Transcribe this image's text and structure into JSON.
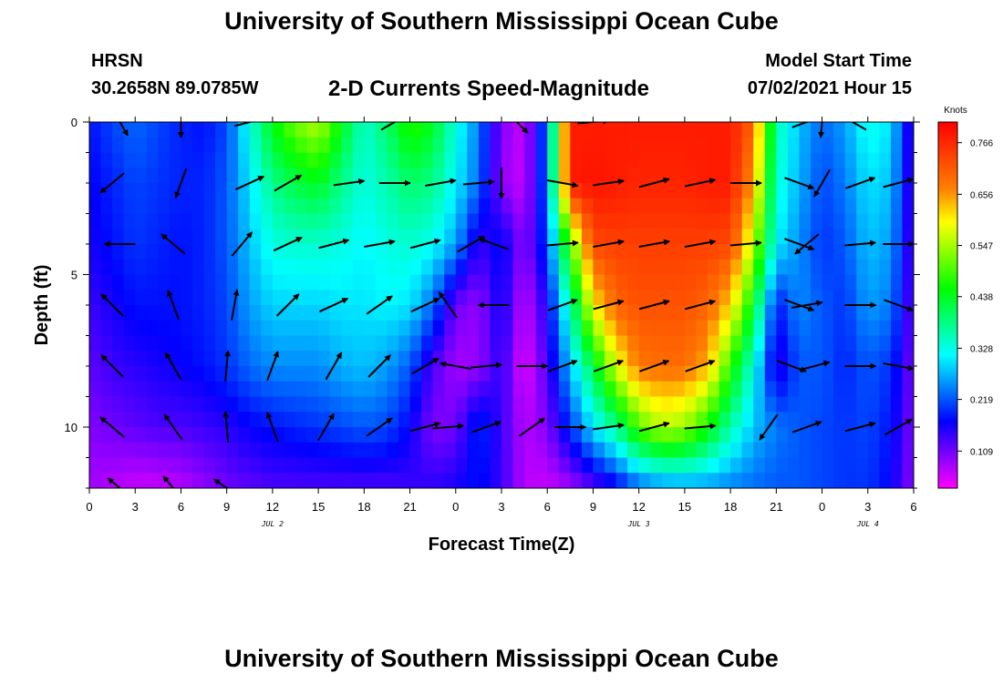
{
  "header": {
    "title": "University of Southern Mississippi Ocean Cube",
    "station": "HRSN",
    "coordinates": "30.2658N  89.0785W",
    "subtitle": "2-D Currents Speed-Magnitude",
    "model_start_label": "Model Start Time",
    "model_start_value": "07/02/2021 Hour 15"
  },
  "footer": {
    "title": "University of Southern Mississippi Ocean Cube"
  },
  "chart_data": {
    "type": "heatmap",
    "xlabel": "Forecast Time(Z)",
    "ylabel": "Depth (ft)",
    "x_hours_range": [
      0,
      54
    ],
    "y_range": [
      0,
      12
    ],
    "y_inverted": true,
    "x_ticks": [
      "0",
      "3",
      "6",
      "9",
      "12",
      "15",
      "18",
      "21",
      "0",
      "3",
      "6",
      "9",
      "12",
      "15",
      "18",
      "21",
      "0",
      "3",
      "6"
    ],
    "y_ticks": [
      "0",
      "5",
      "10"
    ],
    "date_labels": [
      {
        "text": "JUL 2",
        "hour": 12
      },
      {
        "text": "JUL 3",
        "hour": 36
      },
      {
        "text": "JUL 4",
        "hour": 51
      }
    ],
    "colorbar": {
      "unit": "Knots",
      "ticks": [
        0.766,
        0.656,
        0.547,
        0.438,
        0.328,
        0.219,
        0.109
      ],
      "range": [
        0.03,
        0.81
      ],
      "colors": [
        "#ff00ff",
        "#8000ff",
        "#0000ff",
        "#0080ff",
        "#00ffff",
        "#00ff80",
        "#00ff00",
        "#80ff00",
        "#ffff00",
        "#ff8000",
        "#ff4000",
        "#ff0000"
      ]
    },
    "depths_ft": [
      0,
      2,
      4,
      6,
      8,
      10,
      12
    ],
    "hours": [
      0,
      1.5,
      3,
      4.5,
      6,
      7.5,
      9,
      10.5,
      12,
      13.5,
      15,
      16.5,
      18,
      19.5,
      21,
      22.5,
      24,
      25.5,
      27,
      28.5,
      30,
      31.5,
      33,
      34.5,
      36,
      37.5,
      39,
      40.5,
      42,
      43.5,
      45,
      46.5,
      48,
      49.5,
      51,
      52.5,
      54
    ],
    "speed_knots": [
      [
        0.18,
        0.21,
        0.23,
        0.21,
        0.19,
        0.18,
        0.21,
        0.33,
        0.45,
        0.52,
        0.56,
        0.45,
        0.34,
        0.4,
        0.48,
        0.44,
        0.33,
        0.24,
        0.1,
        0.06,
        0.24,
        0.78,
        0.78,
        0.78,
        0.78,
        0.78,
        0.78,
        0.78,
        0.78,
        0.7,
        0.36,
        0.28,
        0.23,
        0.26,
        0.33,
        0.3,
        0.12
      ],
      [
        0.17,
        0.19,
        0.21,
        0.2,
        0.19,
        0.19,
        0.22,
        0.3,
        0.38,
        0.42,
        0.44,
        0.38,
        0.33,
        0.36,
        0.4,
        0.38,
        0.31,
        0.23,
        0.09,
        0.06,
        0.24,
        0.78,
        0.79,
        0.78,
        0.77,
        0.77,
        0.77,
        0.78,
        0.78,
        0.65,
        0.34,
        0.27,
        0.21,
        0.24,
        0.3,
        0.28,
        0.12
      ],
      [
        0.16,
        0.18,
        0.2,
        0.19,
        0.18,
        0.19,
        0.22,
        0.28,
        0.33,
        0.34,
        0.34,
        0.33,
        0.31,
        0.33,
        0.34,
        0.32,
        0.26,
        0.14,
        0.18,
        0.09,
        0.21,
        0.5,
        0.73,
        0.74,
        0.74,
        0.74,
        0.74,
        0.74,
        0.73,
        0.56,
        0.31,
        0.25,
        0.2,
        0.22,
        0.28,
        0.26,
        0.12
      ],
      [
        0.14,
        0.16,
        0.18,
        0.18,
        0.18,
        0.19,
        0.21,
        0.26,
        0.29,
        0.29,
        0.29,
        0.3,
        0.3,
        0.31,
        0.3,
        0.23,
        0.11,
        0.09,
        0.17,
        0.06,
        0.16,
        0.36,
        0.6,
        0.7,
        0.72,
        0.72,
        0.72,
        0.7,
        0.62,
        0.44,
        0.18,
        0.25,
        0.22,
        0.2,
        0.26,
        0.24,
        0.11
      ],
      [
        0.12,
        0.14,
        0.15,
        0.16,
        0.17,
        0.18,
        0.2,
        0.23,
        0.25,
        0.25,
        0.25,
        0.27,
        0.28,
        0.26,
        0.22,
        0.13,
        0.08,
        0.09,
        0.15,
        0.04,
        0.13,
        0.28,
        0.42,
        0.58,
        0.68,
        0.69,
        0.69,
        0.64,
        0.48,
        0.33,
        0.14,
        0.22,
        0.22,
        0.19,
        0.22,
        0.2,
        0.1
      ],
      [
        0.1,
        0.11,
        0.12,
        0.13,
        0.13,
        0.14,
        0.15,
        0.17,
        0.18,
        0.19,
        0.2,
        0.21,
        0.22,
        0.21,
        0.17,
        0.1,
        0.11,
        0.2,
        0.14,
        0.07,
        0.1,
        0.2,
        0.3,
        0.38,
        0.5,
        0.56,
        0.54,
        0.46,
        0.36,
        0.28,
        0.24,
        0.22,
        0.21,
        0.2,
        0.21,
        0.18,
        0.1
      ],
      [
        0.08,
        0.07,
        0.06,
        0.06,
        0.07,
        0.09,
        0.11,
        0.12,
        0.13,
        0.13,
        0.13,
        0.13,
        0.13,
        0.13,
        0.14,
        0.15,
        0.16,
        0.18,
        0.14,
        0.07,
        0.06,
        0.08,
        0.12,
        0.16,
        0.22,
        0.24,
        0.25,
        0.25,
        0.24,
        0.23,
        0.22,
        0.22,
        0.21,
        0.2,
        0.2,
        0.17,
        0.09
      ]
    ],
    "vectors": [
      {
        "h": 2,
        "d": 0,
        "a": 60
      },
      {
        "h": 6,
        "d": 0,
        "a": 90
      },
      {
        "h": 10.5,
        "d": 0,
        "a": 345
      },
      {
        "h": 20,
        "d": 0,
        "a": 330
      },
      {
        "h": 28,
        "d": 0,
        "a": 45
      },
      {
        "h": 33,
        "d": 0,
        "a": 355
      },
      {
        "h": 47,
        "d": 0,
        "a": 340
      },
      {
        "h": 48,
        "d": 0,
        "a": 95
      },
      {
        "h": 50,
        "d": 0,
        "a": 210
      },
      {
        "h": 54,
        "d": 0,
        "a": 200
      },
      {
        "h": 1.5,
        "d": 2,
        "a": 140
      },
      {
        "h": 6,
        "d": 2,
        "a": 110
      },
      {
        "h": 10.5,
        "d": 2,
        "a": -25
      },
      {
        "h": 13,
        "d": 2,
        "a": -30
      },
      {
        "h": 17,
        "d": 2,
        "a": -8
      },
      {
        "h": 20,
        "d": 2,
        "a": 0
      },
      {
        "h": 23,
        "d": 2,
        "a": -10
      },
      {
        "h": 25.5,
        "d": 2,
        "a": -5
      },
      {
        "h": 27,
        "d": 2,
        "a": 90
      },
      {
        "h": 31,
        "d": 2,
        "a": 10
      },
      {
        "h": 34,
        "d": 2,
        "a": -8
      },
      {
        "h": 37,
        "d": 2,
        "a": -15
      },
      {
        "h": 40,
        "d": 2,
        "a": -12
      },
      {
        "h": 43,
        "d": 2,
        "a": 0
      },
      {
        "h": 46.5,
        "d": 2,
        "a": 20
      },
      {
        "h": 48,
        "d": 2,
        "a": 120
      },
      {
        "h": 50.5,
        "d": 2,
        "a": -20
      },
      {
        "h": 53,
        "d": 2,
        "a": -15
      },
      {
        "h": 2,
        "d": 4,
        "a": 180
      },
      {
        "h": 5.5,
        "d": 4,
        "a": 220
      },
      {
        "h": 10,
        "d": 4,
        "a": -50
      },
      {
        "h": 13,
        "d": 4,
        "a": -25
      },
      {
        "h": 16,
        "d": 4,
        "a": -15
      },
      {
        "h": 19,
        "d": 4,
        "a": -10
      },
      {
        "h": 22,
        "d": 4,
        "a": -15
      },
      {
        "h": 25,
        "d": 4,
        "a": -30
      },
      {
        "h": 26.5,
        "d": 4,
        "a": 200
      },
      {
        "h": 31,
        "d": 4,
        "a": -5
      },
      {
        "h": 34,
        "d": 4,
        "a": -10
      },
      {
        "h": 37,
        "d": 4,
        "a": -10
      },
      {
        "h": 40,
        "d": 4,
        "a": -10
      },
      {
        "h": 43,
        "d": 4,
        "a": -5
      },
      {
        "h": 46.5,
        "d": 4,
        "a": 20
      },
      {
        "h": 47,
        "d": 4,
        "a": 140
      },
      {
        "h": 50.5,
        "d": 4,
        "a": -5
      },
      {
        "h": 53,
        "d": 4,
        "a": 0
      },
      {
        "h": 1.5,
        "d": 6,
        "a": 225
      },
      {
        "h": 5.5,
        "d": 6,
        "a": 250
      },
      {
        "h": 9.5,
        "d": 6,
        "a": -80
      },
      {
        "h": 13,
        "d": 6,
        "a": -45
      },
      {
        "h": 16,
        "d": 6,
        "a": -25
      },
      {
        "h": 19,
        "d": 6,
        "a": -35
      },
      {
        "h": 22,
        "d": 6,
        "a": -25
      },
      {
        "h": 23.5,
        "d": 6,
        "a": 235
      },
      {
        "h": 26.5,
        "d": 6,
        "a": 180
      },
      {
        "h": 31,
        "d": 6,
        "a": -20
      },
      {
        "h": 34,
        "d": 6,
        "a": -15
      },
      {
        "h": 37,
        "d": 6,
        "a": -15
      },
      {
        "h": 40,
        "d": 6,
        "a": -15
      },
      {
        "h": 46.5,
        "d": 6,
        "a": 20
      },
      {
        "h": 47,
        "d": 6,
        "a": -10
      },
      {
        "h": 50.5,
        "d": 6,
        "a": 0
      },
      {
        "h": 53,
        "d": 6,
        "a": 20
      },
      {
        "h": 1.5,
        "d": 8,
        "a": 225
      },
      {
        "h": 5.5,
        "d": 8,
        "a": 240
      },
      {
        "h": 9,
        "d": 8,
        "a": -85
      },
      {
        "h": 12,
        "d": 8,
        "a": -70
      },
      {
        "h": 16,
        "d": 8,
        "a": -60
      },
      {
        "h": 19,
        "d": 8,
        "a": -45
      },
      {
        "h": 22,
        "d": 8,
        "a": -30
      },
      {
        "h": 24,
        "d": 8,
        "a": 190
      },
      {
        "h": 26,
        "d": 8,
        "a": -5
      },
      {
        "h": 29,
        "d": 8,
        "a": 0
      },
      {
        "h": 31,
        "d": 8,
        "a": -20
      },
      {
        "h": 34,
        "d": 8,
        "a": -20
      },
      {
        "h": 37,
        "d": 8,
        "a": -20
      },
      {
        "h": 40,
        "d": 8,
        "a": -20
      },
      {
        "h": 46,
        "d": 8,
        "a": 20
      },
      {
        "h": 47.5,
        "d": 8,
        "a": -15
      },
      {
        "h": 50.5,
        "d": 8,
        "a": 0
      },
      {
        "h": 53,
        "d": 8,
        "a": 10
      },
      {
        "h": 1.5,
        "d": 10,
        "a": 220
      },
      {
        "h": 5.5,
        "d": 10,
        "a": 235
      },
      {
        "h": 9,
        "d": 10,
        "a": 265
      },
      {
        "h": 12,
        "d": 10,
        "a": 250
      },
      {
        "h": 15.5,
        "d": 10,
        "a": -60
      },
      {
        "h": 19,
        "d": 10,
        "a": -35
      },
      {
        "h": 22,
        "d": 10,
        "a": -15
      },
      {
        "h": 23.5,
        "d": 10,
        "a": -5
      },
      {
        "h": 26,
        "d": 10,
        "a": -20
      },
      {
        "h": 29,
        "d": 10,
        "a": -35
      },
      {
        "h": 31.5,
        "d": 10,
        "a": 0
      },
      {
        "h": 34,
        "d": 10,
        "a": -8
      },
      {
        "h": 37,
        "d": 10,
        "a": -15
      },
      {
        "h": 40,
        "d": 10,
        "a": -5
      },
      {
        "h": 44.5,
        "d": 10,
        "a": 125
      },
      {
        "h": 47,
        "d": 10,
        "a": -20
      },
      {
        "h": 50.5,
        "d": 10,
        "a": -15
      },
      {
        "h": 53,
        "d": 10,
        "a": -30
      },
      {
        "h": 2,
        "d": 12,
        "a": 220
      },
      {
        "h": 5.5,
        "d": 12,
        "a": 230
      },
      {
        "h": 9,
        "d": 12,
        "a": 215
      }
    ]
  }
}
